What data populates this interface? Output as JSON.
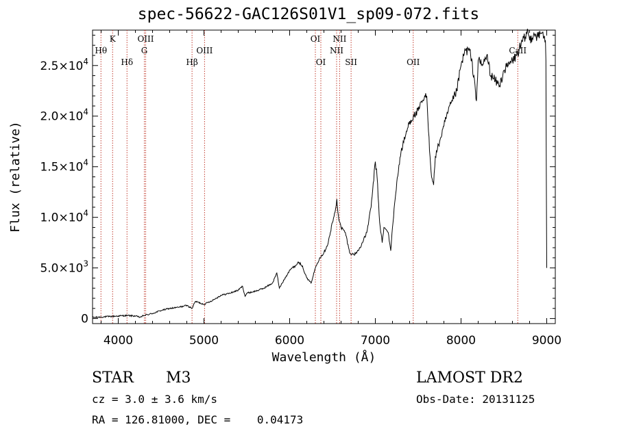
{
  "chart_data": {
    "type": "line",
    "title": "spec-56622-GAC126S01V1_sp09-072.fits",
    "xlabel": "Wavelength (Å)",
    "ylabel": "Flux (relative)",
    "xlim": [
      3700,
      9100
    ],
    "ylim": [
      -500,
      28500
    ],
    "x_ticks": [
      4000,
      5000,
      6000,
      7000,
      8000,
      9000
    ],
    "x_tick_labels": [
      "4000",
      "5000",
      "6000",
      "7000",
      "8000",
      "9000"
    ],
    "y_ticks": [
      {
        "value": 0,
        "mantissa": "0",
        "exp": ""
      },
      {
        "value": 5000,
        "mantissa": "5.0×10",
        "exp": "3"
      },
      {
        "value": 10000,
        "mantissa": "1.0×10",
        "exp": "4"
      },
      {
        "value": 15000,
        "mantissa": "1.5×10",
        "exp": "4"
      },
      {
        "value": 20000,
        "mantissa": "2.0×10",
        "exp": "4"
      },
      {
        "value": 25000,
        "mantissa": "2.5×10",
        "exp": "4"
      }
    ],
    "grid": false,
    "spectral_lines": [
      {
        "label": "Hθ",
        "x": 3798,
        "row": 2
      },
      {
        "label": "K",
        "x": 3934,
        "row": 1
      },
      {
        "label": "Hδ",
        "x": 4102,
        "row": 3
      },
      {
        "label": "OIII",
        "x": 4320,
        "row": 1
      },
      {
        "label": "G",
        "x": 4304,
        "row": 2
      },
      {
        "label": "Hβ",
        "x": 4861,
        "row": 3
      },
      {
        "label": "OIII",
        "x": 5007,
        "row": 2
      },
      {
        "label": "OI",
        "x": 6300,
        "row": 1
      },
      {
        "label": "OI",
        "x": 6364,
        "row": 3
      },
      {
        "label": "NII",
        "x": 6548,
        "row": 2
      },
      {
        "label": "NII",
        "x": 6583,
        "row": 1
      },
      {
        "label": "SII",
        "x": 6717,
        "row": 3
      },
      {
        "label": "OII",
        "x": 7442,
        "row": 3
      },
      {
        "label": "CaII",
        "x": 8662,
        "row": 2
      }
    ],
    "series": [
      {
        "x": [
          3700,
          3800,
          3900,
          4000,
          4100,
          4200,
          4250,
          4300,
          4400,
          4500,
          4600,
          4700,
          4800,
          4860,
          4900,
          5000,
          5100,
          5200,
          5300,
          5400,
          5450,
          5480,
          5500,
          5600,
          5700,
          5800,
          5850,
          5880,
          5900,
          6000,
          6080,
          6100,
          6150,
          6180,
          6200,
          6250,
          6300,
          6350,
          6400,
          6450,
          6500,
          6530,
          6550,
          6563,
          6580,
          6600,
          6650,
          6700,
          6750,
          6800,
          6850,
          6900,
          6950,
          7000,
          7020,
          7050,
          7080,
          7100,
          7150,
          7180,
          7200,
          7250,
          7300,
          7350,
          7400,
          7450,
          7500,
          7550,
          7600,
          7620,
          7650,
          7680,
          7700,
          7750,
          7800,
          7850,
          7900,
          7950,
          8000,
          8050,
          8100,
          8150,
          8180,
          8200,
          8250,
          8300,
          8350,
          8400,
          8450,
          8500,
          8550,
          8600,
          8650,
          8700,
          8750,
          8780,
          8800,
          8850,
          8900,
          8950,
          8985,
          8990,
          8995,
          9000
        ],
        "y": [
          100,
          150,
          200,
          250,
          300,
          250,
          120,
          300,
          500,
          800,
          1000,
          1100,
          1300,
          1000,
          1700,
          1400,
          1800,
          2300,
          2500,
          2800,
          3200,
          2200,
          2500,
          2700,
          3000,
          3500,
          4500,
          3000,
          3300,
          4800,
          5300,
          5600,
          5200,
          4400,
          4000,
          3500,
          5000,
          6000,
          6500,
          7500,
          9500,
          10500,
          11800,
          10500,
          9600,
          9000,
          8500,
          6500,
          6300,
          6700,
          7500,
          8500,
          11000,
          15500,
          14000,
          9500,
          7500,
          9000,
          8500,
          6700,
          9000,
          13500,
          16500,
          18000,
          19500,
          20000,
          20500,
          21500,
          22000,
          18500,
          14500,
          13200,
          16000,
          17500,
          19000,
          20500,
          21500,
          22500,
          25000,
          26500,
          26500,
          24000,
          21500,
          25500,
          25000,
          26000,
          24000,
          23500,
          23000,
          24500,
          25000,
          25500,
          26000,
          27000,
          27800,
          28500,
          27500,
          28200,
          27800,
          28300,
          27500,
          25500,
          14000,
          5000
        ]
      }
    ]
  },
  "info": {
    "object_class": "STAR",
    "subclass": "M3",
    "cz": "cz = 3.0 ± 3.6 km/s",
    "coords": "RA = 126.81000, DEC =    0.04173",
    "survey": "LAMOST DR2",
    "obs_date": "Obs-Date: 20131125"
  },
  "colors": {
    "line_marker": "#c0392b",
    "spectrum": "#000000"
  }
}
